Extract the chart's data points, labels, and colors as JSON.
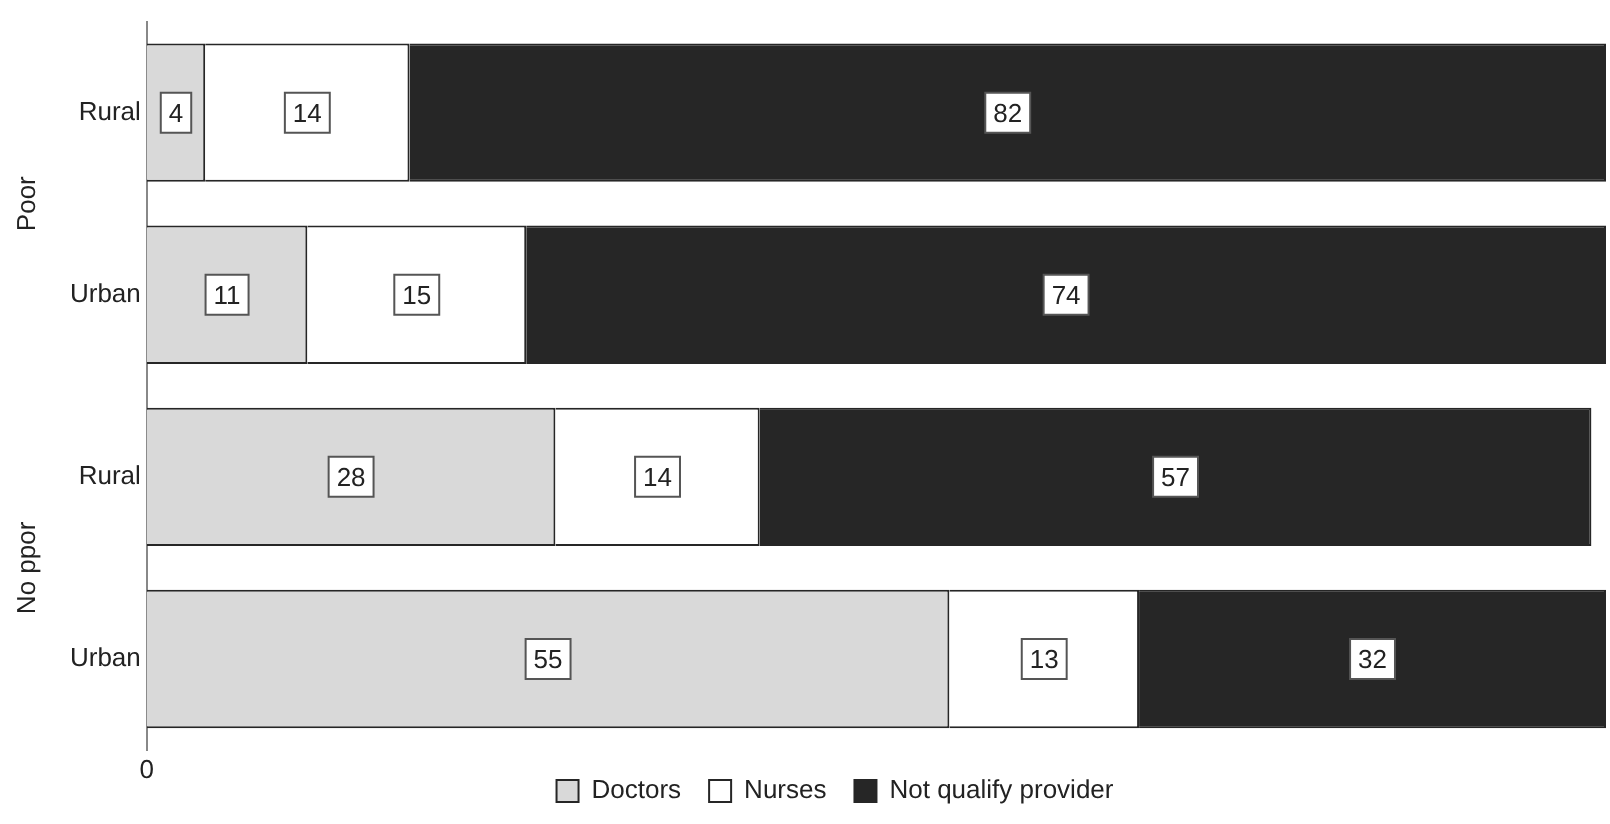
{
  "chart_data": {
    "type": "bar",
    "orientation": "horizontal",
    "stacked": true,
    "categories": [
      "Rural",
      "Urban",
      "Rural",
      "Urban"
    ],
    "series": [
      {
        "name": "Doctors",
        "color": "#d9d9d9",
        "values": [
          4,
          11,
          28,
          55
        ]
      },
      {
        "name": "Nurses",
        "color": "#ffffff",
        "values": [
          14,
          15,
          14,
          13
        ]
      },
      {
        "name": "Not qualify provider",
        "color": "#262626",
        "values": [
          82,
          74,
          57,
          32
        ]
      }
    ],
    "xlim": [
      0,
      100
    ],
    "data_labels": true,
    "grid": false,
    "legend": "bottom",
    "annotations": [
      "Poor",
      "No ppor",
      "0"
    ]
  }
}
